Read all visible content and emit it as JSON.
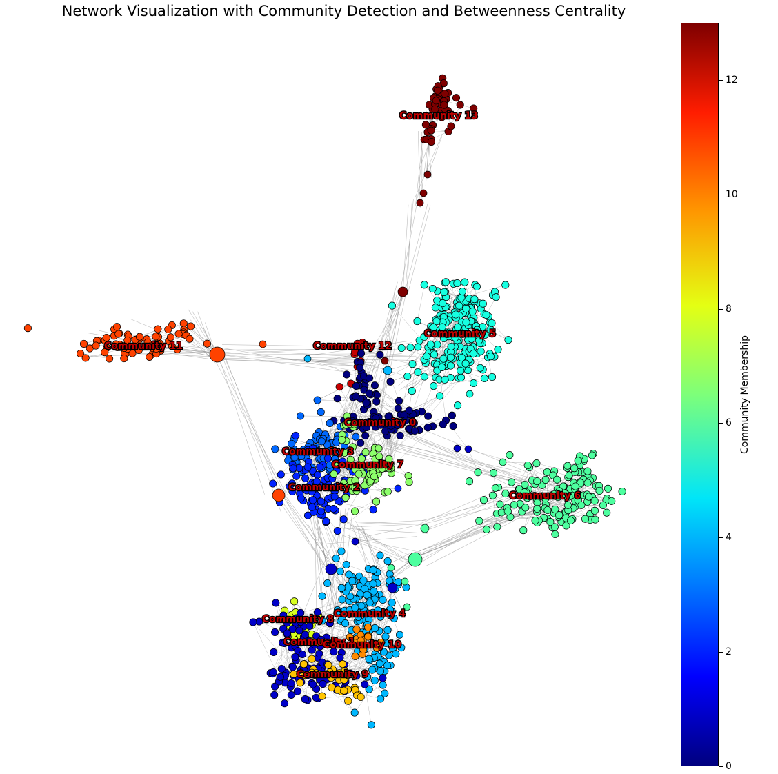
{
  "title": "Network Visualization with Community Detection and Betweenness Centrality",
  "colorbar": {
    "label": "Community Membership",
    "ticks": [
      "0",
      "2",
      "4",
      "6",
      "8",
      "10",
      "12"
    ],
    "range": [
      0,
      13
    ]
  },
  "chart_data": {
    "type": "network",
    "communities": [
      {
        "id": 0,
        "label": "Community 0",
        "color": "#00007f"
      },
      {
        "id": 1,
        "label": "Community 1",
        "color": "#0000c8"
      },
      {
        "id": 2,
        "label": "Community 2",
        "color": "#0022ff"
      },
      {
        "id": 3,
        "label": "Community 3",
        "color": "#0068ff"
      },
      {
        "id": 4,
        "label": "Community 4",
        "color": "#00b8ff"
      },
      {
        "id": 5,
        "label": "Community 5",
        "color": "#16ffe1"
      },
      {
        "id": 6,
        "label": "Community 6",
        "color": "#4dff9f"
      },
      {
        "id": 7,
        "label": "Community 7",
        "color": "#8cff6a"
      },
      {
        "id": 8,
        "label": "Community 8",
        "color": "#d8ff1f"
      },
      {
        "id": 9,
        "label": "Community 9",
        "color": "#ffc400"
      },
      {
        "id": 10,
        "label": "Community 10",
        "color": "#ff8a00"
      },
      {
        "id": 11,
        "label": "Community 11",
        "color": "#ff4200"
      },
      {
        "id": 12,
        "label": "Community 12",
        "color": "#c80000"
      },
      {
        "id": 13,
        "label": "Community 13",
        "color": "#7f0000"
      }
    ],
    "label_colors": {
      "text": "#c00000",
      "outline": "#000000"
    }
  }
}
